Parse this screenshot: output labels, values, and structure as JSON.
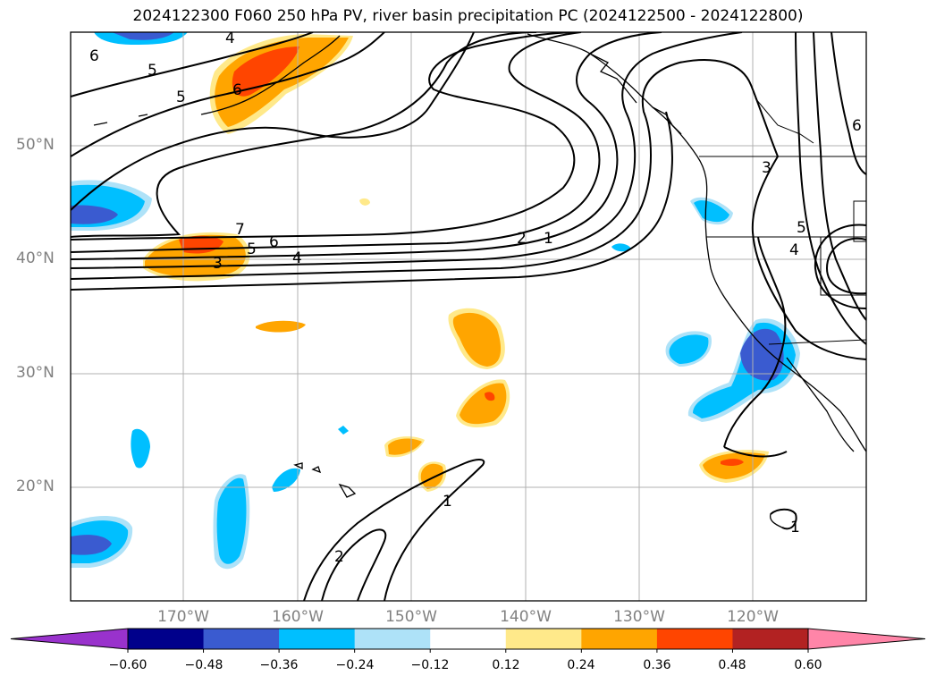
{
  "title": "2024122300 F060 250 hPa PV, river basin precipitation PC (2024122500 - 2024122800)",
  "lat_labels": [
    "50°N",
    "40°N",
    "30°N",
    "20°N"
  ],
  "lon_labels": [
    "170°W",
    "160°W",
    "150°W",
    "140°W",
    "130°W",
    "120°W"
  ],
  "contour_labels": [
    "6",
    "5",
    "5",
    "6",
    "4",
    "7",
    "6",
    "5",
    "4",
    "3",
    "2",
    "1",
    "3",
    "5",
    "4",
    "6",
    "1",
    "2",
    "1"
  ],
  "colorbar": {
    "ticks": [
      "−0.60",
      "−0.48",
      "−0.36",
      "−0.24",
      "−0.12",
      "0.12",
      "0.24",
      "0.36",
      "0.48",
      "0.60"
    ],
    "colors": [
      "#9932cc",
      "#00008b",
      "#3a5bd0",
      "#00bfff",
      "#aee2f8",
      "#ffffff",
      "#ffe98a",
      "#ffa500",
      "#ff4500",
      "#b22222",
      "#ff85a8"
    ]
  }
}
